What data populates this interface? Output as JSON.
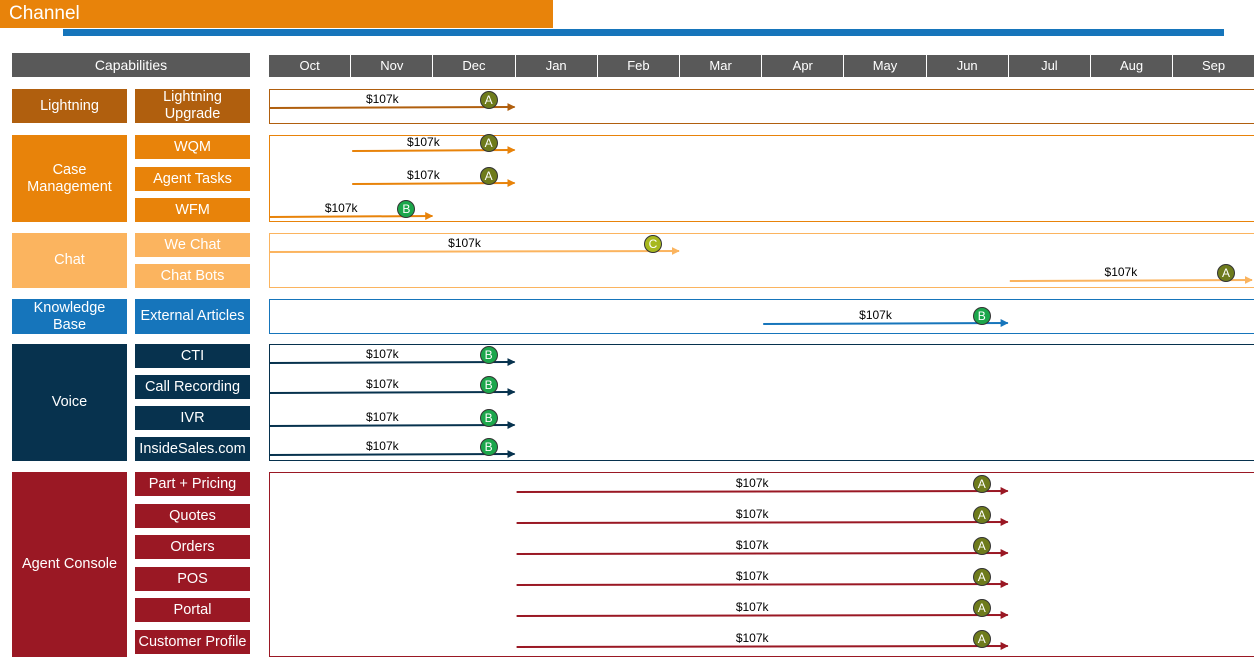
{
  "page_title": "Channel",
  "capabilities_header": "Capabilities",
  "months": [
    "Oct",
    "Nov",
    "Dec",
    "Jan",
    "Feb",
    "Mar",
    "Apr",
    "May",
    "Jun",
    "Jul",
    "Aug",
    "Sep"
  ],
  "colors": {
    "lightning": "#B05F0E",
    "case_management": "#E8830A",
    "chat": "#FBB45F",
    "knowledge_base": "#1675BB",
    "voice": "#07324E",
    "agent_console": "#9A1824",
    "badge_A": "#6E7B1C",
    "badge_B": "#1CA64B",
    "badge_C": "#A7B81F"
  },
  "groups": [
    {
      "name": "Lightning",
      "color": "#B05F0E",
      "items": [
        {
          "name": "Lightning Upgrade",
          "bars": [
            {
              "start": "Oct",
              "end": "Dec",
              "cost": "$107k",
              "badge": "A"
            }
          ]
        }
      ]
    },
    {
      "name": "Case Management",
      "color": "#E8830A",
      "items": [
        {
          "name": "WQM",
          "bars": [
            {
              "start": "Nov",
              "end": "Dec",
              "cost": "$107k",
              "badge": "A"
            }
          ]
        },
        {
          "name": "Agent Tasks",
          "bars": [
            {
              "start": "Nov",
              "end": "Dec",
              "cost": "$107k",
              "badge": "A"
            }
          ]
        },
        {
          "name": "WFM",
          "bars": [
            {
              "start": "Oct",
              "end": "Nov",
              "cost": "$107k",
              "badge": "B"
            }
          ]
        }
      ]
    },
    {
      "name": "Chat",
      "color": "#FBB45F",
      "items": [
        {
          "name": "We Chat",
          "bars": [
            {
              "start": "Oct",
              "end": "Feb",
              "cost": "$107k",
              "badge": "C"
            }
          ]
        },
        {
          "name": "Chat Bots",
          "bars": [
            {
              "start": "Jul",
              "end": "Sep",
              "cost": "$107k",
              "badge": "A"
            }
          ]
        }
      ]
    },
    {
      "name": "Knowledge Base",
      "color": "#1675BB",
      "items": [
        {
          "name": "External Articles",
          "bars": [
            {
              "start": "Apr",
              "end": "Jun",
              "cost": "$107k",
              "badge": "B"
            }
          ]
        }
      ]
    },
    {
      "name": "Voice",
      "color": "#07324E",
      "items": [
        {
          "name": "CTI",
          "bars": [
            {
              "start": "Oct",
              "end": "Dec",
              "cost": "$107k",
              "badge": "B"
            }
          ]
        },
        {
          "name": "Call Recording",
          "bars": [
            {
              "start": "Oct",
              "end": "Dec",
              "cost": "$107k",
              "badge": "B"
            }
          ]
        },
        {
          "name": "IVR",
          "bars": [
            {
              "start": "Oct",
              "end": "Dec",
              "cost": "$107k",
              "badge": "B"
            }
          ]
        },
        {
          "name": "InsideSales.com",
          "bars": [
            {
              "start": "Oct",
              "end": "Dec",
              "cost": "$107k",
              "badge": "B"
            }
          ]
        }
      ]
    },
    {
      "name": "Agent Console",
      "color": "#9A1824",
      "items": [
        {
          "name": "Part + Pricing",
          "bars": [
            {
              "start": "Jan",
              "end": "Jun",
              "cost": "$107k",
              "badge": "A"
            }
          ]
        },
        {
          "name": "Quotes",
          "bars": [
            {
              "start": "Jan",
              "end": "Jun",
              "cost": "$107k",
              "badge": "A"
            }
          ]
        },
        {
          "name": "Orders",
          "bars": [
            {
              "start": "Jan",
              "end": "Jun",
              "cost": "$107k",
              "badge": "A"
            }
          ]
        },
        {
          "name": "POS",
          "bars": [
            {
              "start": "Jan",
              "end": "Jun",
              "cost": "$107k",
              "badge": "A"
            }
          ]
        },
        {
          "name": "Portal",
          "bars": [
            {
              "start": "Jan",
              "end": "Jun",
              "cost": "$107k",
              "badge": "A"
            }
          ]
        },
        {
          "name": "Customer Profile",
          "bars": [
            {
              "start": "Jan",
              "end": "Jun",
              "cost": "$107k",
              "badge": "A"
            }
          ]
        }
      ]
    }
  ]
}
